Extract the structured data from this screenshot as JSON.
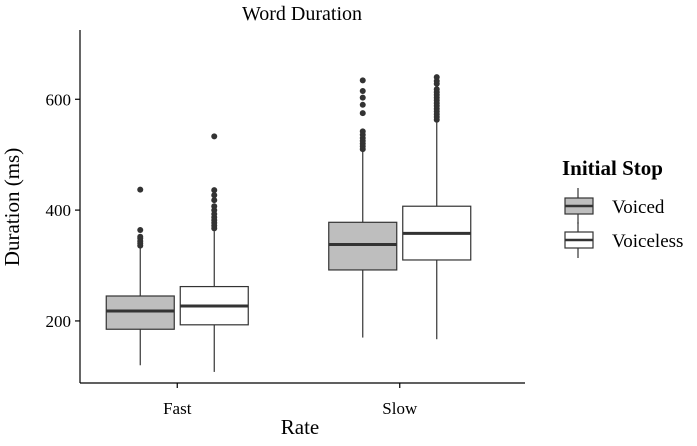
{
  "chart_data": {
    "type": "boxplot",
    "title": "Word Duration",
    "xlabel": "Rate",
    "ylabel": "Duration (ms)",
    "categories": [
      "Fast",
      "Slow"
    ],
    "yticks": [
      200,
      400,
      600
    ],
    "ylim": [
      88,
      725
    ],
    "grid": false,
    "legend": {
      "title": "Initial Stop",
      "position": "right"
    },
    "series": [
      {
        "name": "Voiced",
        "color": "#bebebe",
        "boxes": [
          {
            "category": "Fast",
            "whisker_low": 120,
            "q1": 185,
            "median": 218,
            "q3": 245,
            "whisker_high": 332,
            "outliers": [
              336,
              340,
              344,
              349,
              352,
              364,
              437
            ]
          },
          {
            "category": "Slow",
            "whisker_low": 170,
            "q1": 292,
            "median": 338,
            "q3": 378,
            "whisker_high": 505,
            "outliers": [
              510,
              515,
              520,
              525,
              530,
              536,
              542,
              575,
              590,
              603,
              615,
              634
            ]
          }
        ]
      },
      {
        "name": "Voiceless",
        "color": "#ffffff",
        "boxes": [
          {
            "category": "Fast",
            "whisker_low": 108,
            "q1": 193,
            "median": 227,
            "q3": 262,
            "whisker_high": 362,
            "outliers": [
              367,
              372,
              377,
              382,
              387,
              393,
              400,
              407,
              418,
              427,
              436,
              533
            ]
          },
          {
            "category": "Slow",
            "whisker_low": 167,
            "q1": 310,
            "median": 358,
            "q3": 407,
            "whisker_high": 558,
            "outliers": [
              563,
              568,
              573,
              578,
              583,
              588,
              593,
              598,
              603,
              608,
              613,
              618,
              628,
              633,
              640
            ]
          }
        ]
      }
    ]
  }
}
